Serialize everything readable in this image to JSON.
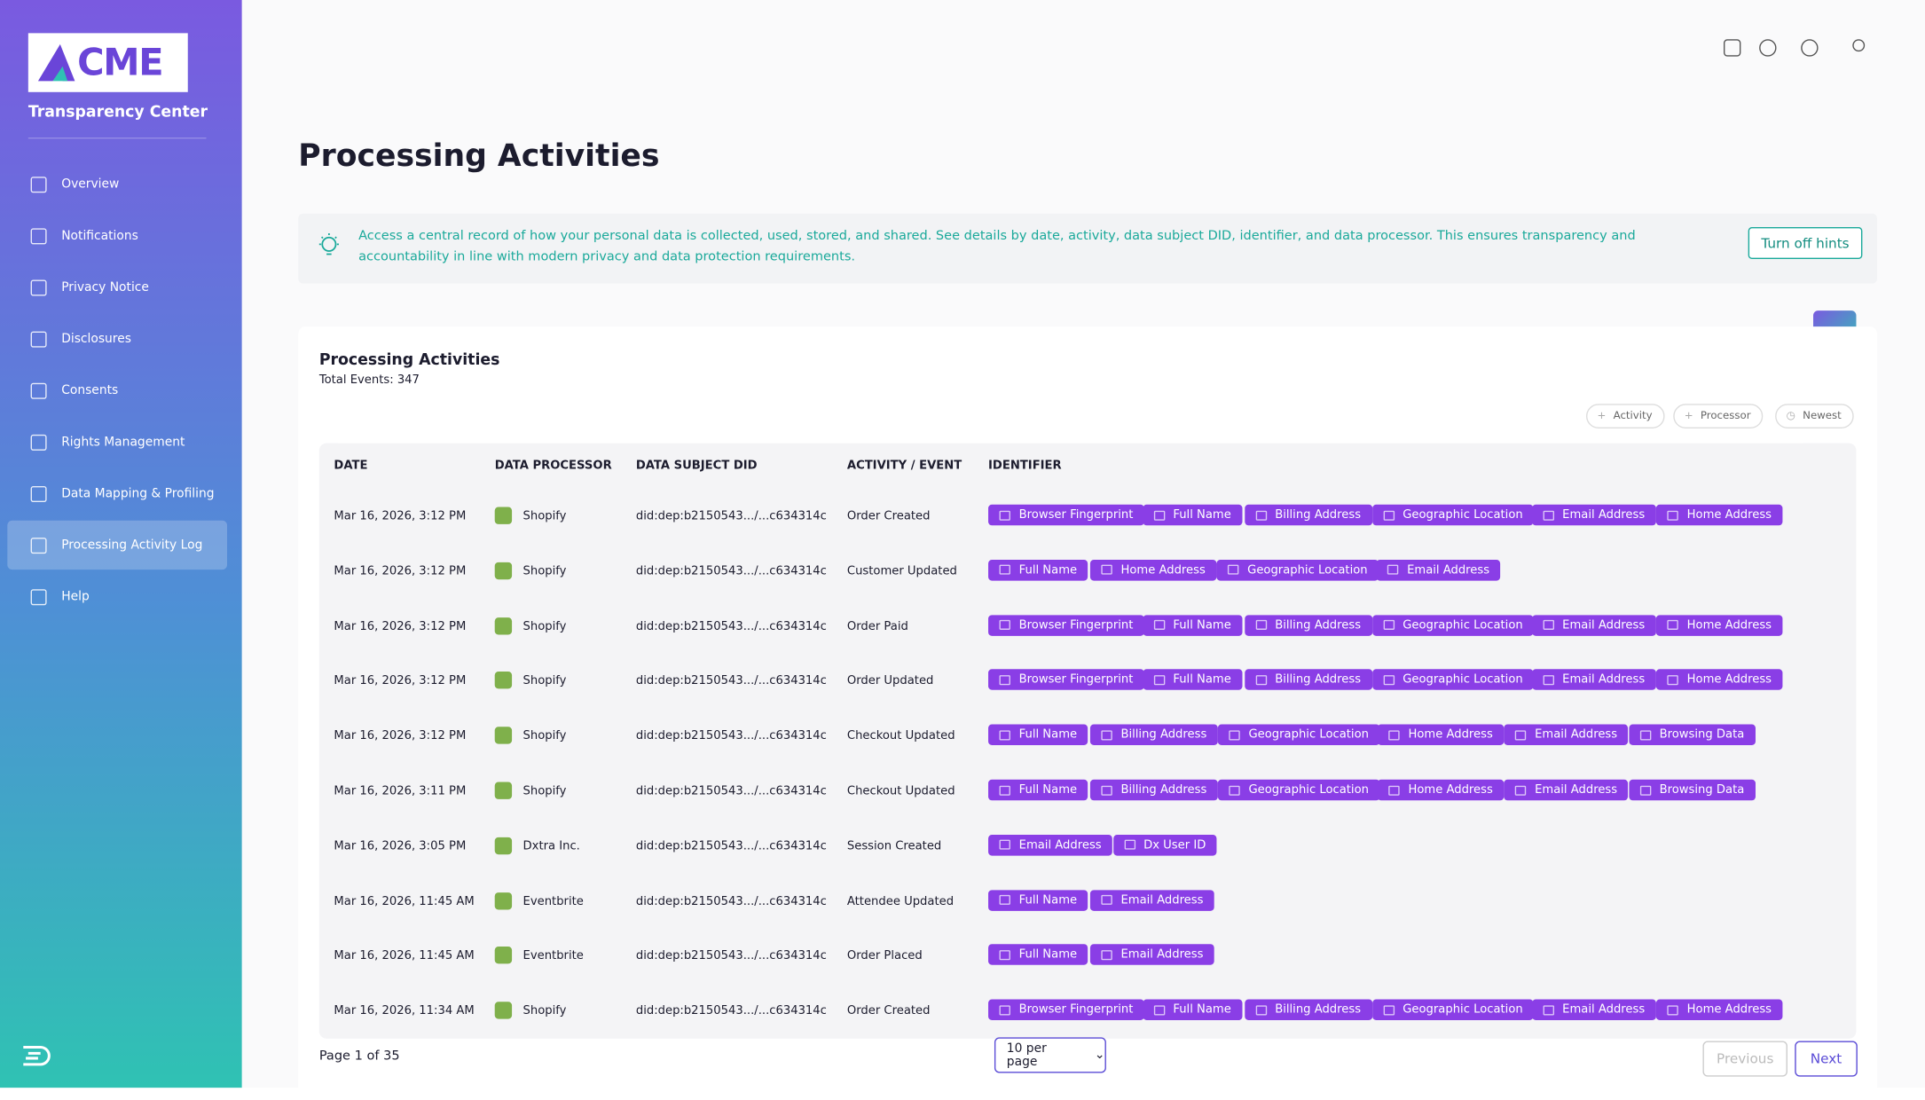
{
  "sidebar": {
    "logo_text": "CME",
    "subtitle": "Transparency Center",
    "nav": [
      "Overview",
      "Notifications",
      "Privacy Notice",
      "Disclosures",
      "Consents",
      "Rights Management",
      "Data Mapping & Profiling",
      "Processing Activity Log",
      "Help"
    ]
  },
  "page_title": "Processing Activities",
  "hint": {
    "text": "Access a central record of how your personal data is collected, used, stored, and shared. See details by date, activity, data subject DID, identifier, and data processor. This ensures transparency and accountability in line with modern privacy and data protection requirements.",
    "button": "Turn off hints"
  },
  "card": {
    "title": "Processing Activities",
    "total": "Total Events: 347",
    "filters": [
      "Activity",
      "Processor",
      "Newest"
    ]
  },
  "table": {
    "columns": [
      "DATE",
      "DATA PROCESSOR",
      "DATA SUBJECT DID",
      "ACTIVITY / EVENT",
      "IDENTIFIER"
    ],
    "rows": [
      {
        "date": "Mar 16, 2026, 3:12 PM",
        "processor": "Shopify",
        "did": "did:dep:b2150543.../...c634314c",
        "activity": "Order Created",
        "identifiers": [
          "Browser Fingerprint",
          "Full Name",
          "Billing Address",
          "Geographic Location",
          "Email Address",
          "Home Address"
        ]
      },
      {
        "date": "Mar 16, 2026, 3:12 PM",
        "processor": "Shopify",
        "did": "did:dep:b2150543.../...c634314c",
        "activity": "Customer Updated",
        "identifiers": [
          "Full Name",
          "Home Address",
          "Geographic Location",
          "Email Address"
        ]
      },
      {
        "date": "Mar 16, 2026, 3:12 PM",
        "processor": "Shopify",
        "did": "did:dep:b2150543.../...c634314c",
        "activity": "Order Paid",
        "identifiers": [
          "Browser Fingerprint",
          "Full Name",
          "Billing Address",
          "Geographic Location",
          "Email Address",
          "Home Address"
        ]
      },
      {
        "date": "Mar 16, 2026, 3:12 PM",
        "processor": "Shopify",
        "did": "did:dep:b2150543.../...c634314c",
        "activity": "Order Updated",
        "identifiers": [
          "Browser Fingerprint",
          "Full Name",
          "Billing Address",
          "Geographic Location",
          "Email Address",
          "Home Address"
        ]
      },
      {
        "date": "Mar 16, 2026, 3:12 PM",
        "processor": "Shopify",
        "did": "did:dep:b2150543.../...c634314c",
        "activity": "Checkout Updated",
        "identifiers": [
          "Full Name",
          "Billing Address",
          "Geographic Location",
          "Home Address",
          "Email Address",
          "Browsing Data"
        ]
      },
      {
        "date": "Mar 16, 2026, 3:11 PM",
        "processor": "Shopify",
        "did": "did:dep:b2150543.../...c634314c",
        "activity": "Checkout Updated",
        "identifiers": [
          "Full Name",
          "Billing Address",
          "Geographic Location",
          "Home Address",
          "Email Address",
          "Browsing Data"
        ]
      },
      {
        "date": "Mar 16, 2026, 3:05 PM",
        "processor": "Dxtra Inc.",
        "did": "did:dep:b2150543.../...c634314c",
        "activity": "Session Created",
        "identifiers": [
          "Email Address",
          "Dx User ID"
        ]
      },
      {
        "date": "Mar 16, 2026, 11:45 AM",
        "processor": "Eventbrite",
        "did": "did:dep:b2150543.../...c634314c",
        "activity": "Attendee Updated",
        "identifiers": [
          "Full Name",
          "Email Address"
        ]
      },
      {
        "date": "Mar 16, 2026, 11:45 AM",
        "processor": "Eventbrite",
        "did": "did:dep:b2150543.../...c634314c",
        "activity": "Order Placed",
        "identifiers": [
          "Full Name",
          "Email Address"
        ]
      },
      {
        "date": "Mar 16, 2026, 11:34 AM",
        "processor": "Shopify",
        "did": "did:dep:b2150543.../...c634314c",
        "activity": "Order Created",
        "identifiers": [
          "Browser Fingerprint",
          "Full Name",
          "Billing Address",
          "Geographic Location",
          "Email Address",
          "Home Address"
        ]
      }
    ]
  },
  "pagination": {
    "page": "Page 1 of 35",
    "per_page": "10 per page",
    "previous": "Previous",
    "next": "Next"
  }
}
